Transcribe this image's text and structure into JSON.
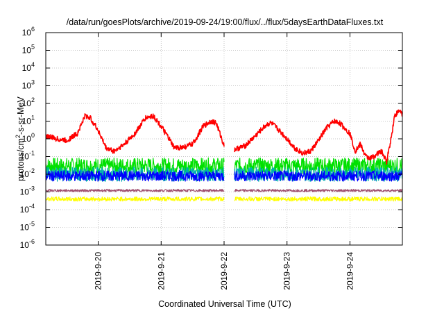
{
  "chart_data": {
    "type": "line",
    "title": "/data/run/goesPlots/archive/2019-09-24/19:00/flux/../flux/5daysEarthDataFluxes.txt",
    "xlabel": "Coordinated Universal Time (UTC)",
    "ylabel": {
      "pre": "protons/cm",
      "sup": "2",
      "post": "-s-sr-MeV"
    },
    "y_scale": "log",
    "ylim": [
      1e-06,
      1000000.0
    ],
    "y_ticks": [
      {
        "base": "10",
        "exp": "-6",
        "value": 1e-06
      },
      {
        "base": "10",
        "exp": "-5",
        "value": 1e-05
      },
      {
        "base": "10",
        "exp": "-4",
        "value": 0.0001
      },
      {
        "base": "10",
        "exp": "-3",
        "value": 0.001
      },
      {
        "base": "10",
        "exp": "-2",
        "value": 0.01
      },
      {
        "base": "10",
        "exp": "-1",
        "value": 0.1
      },
      {
        "base": "10",
        "exp": "0",
        "value": 1
      },
      {
        "base": "10",
        "exp": "1",
        "value": 10
      },
      {
        "base": "10",
        "exp": "2",
        "value": 100
      },
      {
        "base": "10",
        "exp": "3",
        "value": 1000
      },
      {
        "base": "10",
        "exp": "4",
        "value": 10000
      },
      {
        "base": "10",
        "exp": "5",
        "value": 100000
      },
      {
        "base": "10",
        "exp": "6",
        "value": 1000000
      }
    ],
    "xlim": [
      "2019-09-19T04:00",
      "2019-09-24T20:00"
    ],
    "x_ticks": [
      {
        "label": "2019-9-20",
        "value": "2019-09-20T00:00"
      },
      {
        "label": "2019-9-21",
        "value": "2019-09-21T00:00"
      },
      {
        "label": "2019-9-22",
        "value": "2019-09-22T00:00"
      },
      {
        "label": "2019-9-23",
        "value": "2019-09-23T00:00"
      },
      {
        "label": "2019-9-24",
        "value": "2019-09-24T00:00"
      }
    ],
    "grid": true,
    "legend": "none",
    "data_gap": [
      "2019-09-22T00:00",
      "2019-09-22T04:00"
    ],
    "series": [
      {
        "color": "#ff0000",
        "noise": 0.15,
        "points": [
          [
            "2019-09-19T04:00",
            1.5
          ],
          [
            "2019-09-19T08:00",
            1.0
          ],
          [
            "2019-09-19T12:00",
            0.8
          ],
          [
            "2019-09-19T16:00",
            2.0
          ],
          [
            "2019-09-19T19:00",
            20
          ],
          [
            "2019-09-19T21:00",
            15
          ],
          [
            "2019-09-20T00:00",
            3.0
          ],
          [
            "2019-09-20T03:00",
            0.3
          ],
          [
            "2019-09-20T06:00",
            0.2
          ],
          [
            "2019-09-20T10:00",
            0.5
          ],
          [
            "2019-09-20T14:00",
            2.0
          ],
          [
            "2019-09-20T18:00",
            15
          ],
          [
            "2019-09-20T21:00",
            20
          ],
          [
            "2019-09-21T00:00",
            5
          ],
          [
            "2019-09-21T03:00",
            1.0
          ],
          [
            "2019-09-21T05:00",
            0.3
          ],
          [
            "2019-09-21T09:00",
            0.35
          ],
          [
            "2019-09-21T12:00",
            0.5
          ],
          [
            "2019-09-21T16:00",
            5
          ],
          [
            "2019-09-21T19:00",
            10
          ],
          [
            "2019-09-21T21:00",
            8
          ],
          [
            "2019-09-22T00:00",
            0.4
          ],
          [
            "2019-09-22T04:00",
            0.25
          ],
          [
            "2019-09-22T08:00",
            0.4
          ],
          [
            "2019-09-22T12:00",
            1.5
          ],
          [
            "2019-09-22T16:00",
            6
          ],
          [
            "2019-09-22T18:00",
            8
          ],
          [
            "2019-09-22T21:00",
            3
          ],
          [
            "2019-09-23T00:00",
            1.0
          ],
          [
            "2019-09-23T03:00",
            0.3
          ],
          [
            "2019-09-23T06:00",
            0.15
          ],
          [
            "2019-09-23T09:00",
            0.2
          ],
          [
            "2019-09-23T12:00",
            0.8
          ],
          [
            "2019-09-23T15:00",
            4
          ],
          [
            "2019-09-23T18:00",
            10
          ],
          [
            "2019-09-23T20:00",
            8
          ],
          [
            "2019-09-24T00:00",
            2
          ],
          [
            "2019-09-24T02:00",
            0.2
          ],
          [
            "2019-09-24T04:00",
            0.5
          ],
          [
            "2019-09-24T06:00",
            0.1
          ],
          [
            "2019-09-24T08:00",
            0.08
          ],
          [
            "2019-09-24T12:00",
            0.2
          ],
          [
            "2019-09-24T14:00",
            0.05
          ],
          [
            "2019-09-24T16:00",
            2
          ],
          [
            "2019-09-24T17:00",
            20
          ],
          [
            "2019-09-24T19:00",
            40
          ],
          [
            "2019-09-24T20:00",
            25
          ]
        ]
      },
      {
        "color": "#00e000",
        "base": 0.03,
        "noise": 0.45
      },
      {
        "color": "#00b0b0",
        "base": 0.01,
        "noise": 0.4
      },
      {
        "color": "#0000ff",
        "base": 0.008,
        "noise": 0.3
      },
      {
        "color": "#a05070",
        "base": 0.0012,
        "noise": 0.07
      },
      {
        "color": "#ffff00",
        "base": 0.0004,
        "noise": 0.12
      }
    ]
  }
}
